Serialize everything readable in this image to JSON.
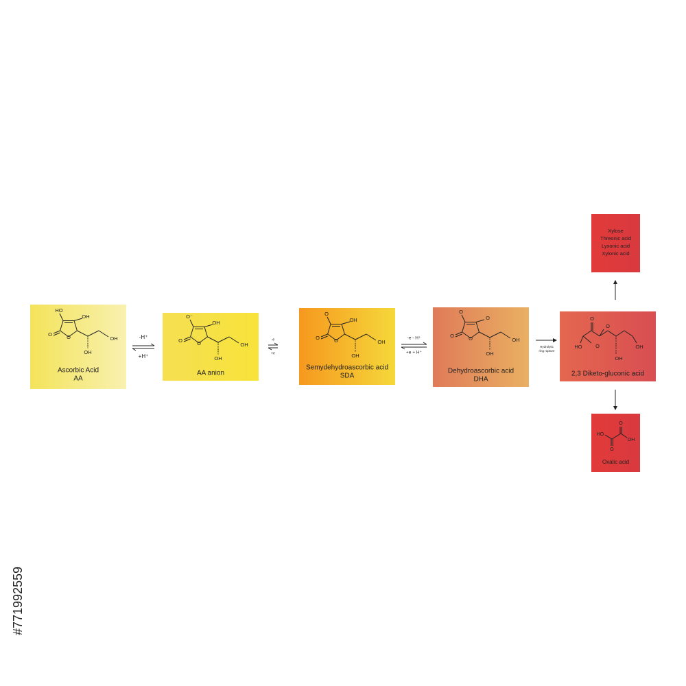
{
  "watermark": "#771992559",
  "compounds": [
    {
      "name": "Ascorbic Acid",
      "abbr": "AA",
      "atoms": [
        "HO",
        "OH",
        "O",
        "O",
        "OH",
        "OH"
      ]
    },
    {
      "name": "AA anion",
      "atoms": [
        "O⁻",
        "OH",
        "O",
        "O",
        "OH",
        "OH"
      ]
    },
    {
      "name": "Semydehydroascorbic acid",
      "abbr": "SDA",
      "atoms": [
        "O",
        "OH",
        "O",
        "O",
        "OH",
        "OH"
      ]
    },
    {
      "name": "Dehydroascorbic acid",
      "abbr": "DHA",
      "atoms": [
        "O",
        "O",
        "O",
        "O",
        "OH",
        "OH"
      ]
    },
    {
      "name": "2,3 Diketo-gluconic acid",
      "atoms": [
        "O",
        "O",
        "HO",
        "O",
        "OH",
        "OH"
      ]
    }
  ],
  "reactions": [
    {
      "forward": "-H⁺",
      "reverse": "+H⁺"
    },
    {
      "forward": "-e",
      "reverse": "+e"
    },
    {
      "forward": "-e - H⁺",
      "reverse": "+e + H⁺"
    },
    {
      "label": [
        "Hydrolytic",
        "ring rupture"
      ]
    }
  ],
  "products": {
    "top": [
      "Xylose",
      "Threonic acid",
      "Lyxonic acid",
      "Xylonic acid"
    ],
    "bottom": {
      "name": "Oxalic acid",
      "atoms": [
        "HO",
        "O",
        "O",
        "OH"
      ]
    }
  }
}
